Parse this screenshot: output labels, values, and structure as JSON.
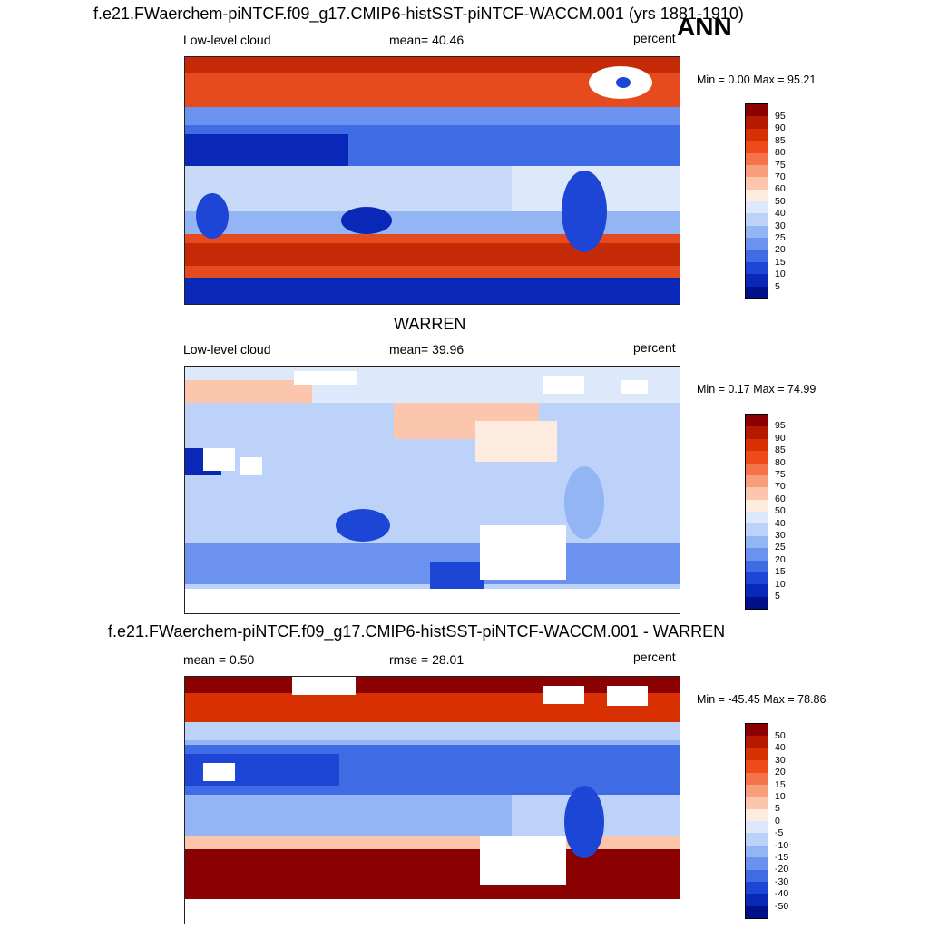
{
  "header": {
    "title": "f.e21.FWaerchem-piNTCF.f09_g17.CMIP6-histSST-piNTCF-WACCM.001 (yrs 1881-1910)",
    "season": "ANN"
  },
  "panels": [
    {
      "id": "model",
      "variable": "Low-level cloud",
      "stat": "mean=  40.46",
      "units": "percent",
      "minmax": "Min =   0.00 Max =  95.21",
      "colorbar": [
        "95",
        "90",
        "85",
        "80",
        "75",
        "70",
        "60",
        "50",
        "40",
        "30",
        "25",
        "20",
        "15",
        "10",
        "5"
      ]
    },
    {
      "id": "obs",
      "heading": "WARREN",
      "variable": "Low-level cloud",
      "stat": "mean=  39.96",
      "units": "percent",
      "minmax": "Min =   0.17 Max =  74.99",
      "colorbar": [
        "95",
        "90",
        "85",
        "80",
        "75",
        "70",
        "60",
        "50",
        "40",
        "30",
        "25",
        "20",
        "15",
        "10",
        "5"
      ]
    },
    {
      "id": "diff",
      "heading": "f.e21.FWaerchem-piNTCF.f09_g17.CMIP6-histSST-piNTCF-WACCM.001 - WARREN",
      "mean": "mean =   0.50",
      "rmse": "rmse =  28.01",
      "units": "percent",
      "minmax": "Min = -45.45 Max =  78.86",
      "colorbar": [
        "50",
        "40",
        "30",
        "20",
        "15",
        "10",
        "5",
        "0",
        "-5",
        "-10",
        "-15",
        "-20",
        "-30",
        "-40",
        "-50"
      ]
    }
  ],
  "colors": {
    "palette16": [
      "#8b0000",
      "#b51a00",
      "#d83000",
      "#ef4a1a",
      "#f5734a",
      "#f99e7a",
      "#fcc6ad",
      "#fdebe0",
      "#dde8fb",
      "#bcd2f9",
      "#93b5f4",
      "#6a92ee",
      "#3f6be4",
      "#1e46d6",
      "#0a28b8",
      "#000f8a"
    ]
  }
}
